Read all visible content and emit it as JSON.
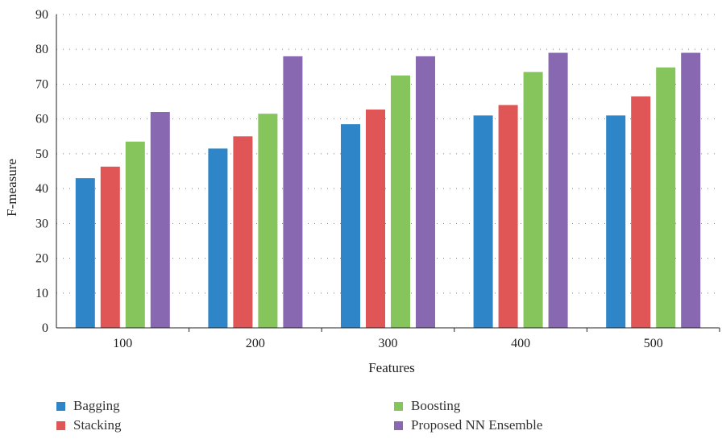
{
  "chart_data": {
    "type": "bar",
    "title": "",
    "xlabel": "Features",
    "ylabel": "F-measure",
    "categories": [
      "100",
      "200",
      "300",
      "400",
      "500"
    ],
    "ylim": [
      0,
      90
    ],
    "yticks": [
      "0",
      "10",
      "20",
      "30",
      "40",
      "50",
      "60",
      "70",
      "80",
      "90"
    ],
    "grid": "dotted horizontal",
    "legend_position": "bottom",
    "series": [
      {
        "name": "Bagging",
        "color": "#2e86c8",
        "values": [
          43,
          51.5,
          58.5,
          61,
          61
        ]
      },
      {
        "name": "Stacking",
        "color": "#e05555",
        "values": [
          46.3,
          55,
          62.7,
          64,
          66.5
        ]
      },
      {
        "name": "Boosting",
        "color": "#86c55c",
        "values": [
          53.5,
          61.5,
          72.5,
          73.5,
          74.8
        ]
      },
      {
        "name": "Proposed NN Ensemble",
        "color": "#8868b0",
        "values": [
          62,
          78,
          78,
          79,
          79
        ]
      }
    ]
  }
}
